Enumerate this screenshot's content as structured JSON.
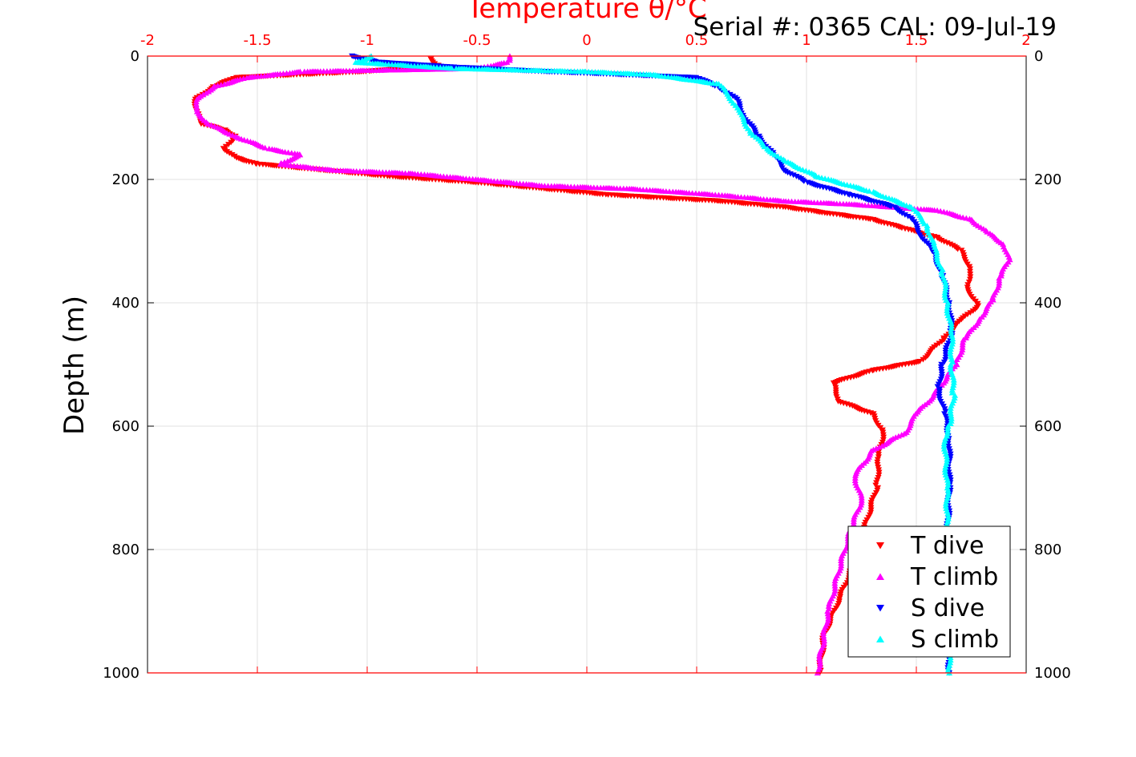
{
  "chart_data": {
    "type": "scatter",
    "title": "",
    "annotation": "Serial #: 0365  CAL: 09-Jul-19",
    "xlabel": "Temperature θ/°C",
    "ylabel": "Depth (m)",
    "xlim": [
      -2,
      2
    ],
    "ylim": [
      0,
      1000
    ],
    "y_reversed": true,
    "grid": true,
    "legend_position": "bottom-right",
    "x_ticks": [
      "-2",
      "-1.5",
      "-1",
      "-0.5",
      "0",
      "0.5",
      "1",
      "1.5",
      "2"
    ],
    "y_ticks": [
      "0",
      "200",
      "400",
      "600",
      "800",
      "1000"
    ],
    "colors": {
      "axis_top": "#ff0000",
      "grid": "#e0e0e0"
    },
    "series": [
      {
        "name": "T dive",
        "marker": "triangle-down",
        "color": "#ff0000",
        "points": [
          [
            -0.71,
            5
          ],
          [
            -0.68,
            15
          ],
          [
            -1.0,
            25
          ],
          [
            -1.6,
            35
          ],
          [
            -1.7,
            50
          ],
          [
            -1.78,
            70
          ],
          [
            -1.78,
            90
          ],
          [
            -1.75,
            110
          ],
          [
            -1.65,
            120
          ],
          [
            -1.6,
            130
          ],
          [
            -1.65,
            150
          ],
          [
            -1.6,
            165
          ],
          [
            -1.5,
            175
          ],
          [
            -1.2,
            185
          ],
          [
            -0.9,
            195
          ],
          [
            -0.5,
            205
          ],
          [
            -0.2,
            215
          ],
          [
            0.1,
            225
          ],
          [
            0.6,
            235
          ],
          [
            0.9,
            245
          ],
          [
            1.1,
            255
          ],
          [
            1.3,
            265
          ],
          [
            1.45,
            280
          ],
          [
            1.6,
            295
          ],
          [
            1.7,
            315
          ],
          [
            1.75,
            345
          ],
          [
            1.73,
            375
          ],
          [
            1.78,
            405
          ],
          [
            1.7,
            430
          ],
          [
            1.62,
            460
          ],
          [
            1.52,
            495
          ],
          [
            1.3,
            510
          ],
          [
            1.12,
            530
          ],
          [
            1.15,
            560
          ],
          [
            1.3,
            580
          ],
          [
            1.35,
            610
          ],
          [
            1.33,
            650
          ],
          [
            1.32,
            700
          ],
          [
            1.27,
            760
          ],
          [
            1.22,
            820
          ],
          [
            1.15,
            880
          ],
          [
            1.08,
            940
          ],
          [
            1.06,
            1000
          ]
        ]
      },
      {
        "name": "T climb",
        "marker": "triangle-up",
        "color": "#ff00ff",
        "points": [
          [
            -0.35,
            0
          ],
          [
            -0.36,
            10
          ],
          [
            -0.5,
            20
          ],
          [
            -1.3,
            25
          ],
          [
            -1.55,
            35
          ],
          [
            -1.7,
            50
          ],
          [
            -1.77,
            70
          ],
          [
            -1.78,
            90
          ],
          [
            -1.72,
            110
          ],
          [
            -1.6,
            130
          ],
          [
            -1.45,
            150
          ],
          [
            -1.3,
            160
          ],
          [
            -1.4,
            175
          ],
          [
            -1.15,
            185
          ],
          [
            -0.8,
            190
          ],
          [
            -0.5,
            200
          ],
          [
            -0.2,
            210
          ],
          [
            0.2,
            215
          ],
          [
            0.6,
            225
          ],
          [
            0.9,
            235
          ],
          [
            1.2,
            240
          ],
          [
            1.6,
            250
          ],
          [
            1.75,
            265
          ],
          [
            1.82,
            285
          ],
          [
            1.9,
            305
          ],
          [
            1.92,
            330
          ],
          [
            1.88,
            360
          ],
          [
            1.85,
            395
          ],
          [
            1.78,
            430
          ],
          [
            1.72,
            460
          ],
          [
            1.68,
            500
          ],
          [
            1.58,
            550
          ],
          [
            1.5,
            580
          ],
          [
            1.45,
            610
          ],
          [
            1.3,
            640
          ],
          [
            1.22,
            680
          ],
          [
            1.25,
            720
          ],
          [
            1.2,
            770
          ],
          [
            1.15,
            830
          ],
          [
            1.1,
            900
          ],
          [
            1.07,
            960
          ],
          [
            1.05,
            1000
          ]
        ]
      },
      {
        "name": "S dive",
        "marker": "triangle-down",
        "color": "#0000ff",
        "points": [
          [
            -1.07,
            0
          ],
          [
            -0.95,
            10
          ],
          [
            -0.6,
            18
          ],
          [
            -0.2,
            25
          ],
          [
            0.5,
            35
          ],
          [
            0.6,
            50
          ],
          [
            0.68,
            70
          ],
          [
            0.72,
            100
          ],
          [
            0.78,
            130
          ],
          [
            0.85,
            160
          ],
          [
            0.9,
            185
          ],
          [
            1.0,
            205
          ],
          [
            1.2,
            225
          ],
          [
            1.4,
            245
          ],
          [
            1.48,
            265
          ],
          [
            1.52,
            290
          ],
          [
            1.58,
            320
          ],
          [
            1.62,
            360
          ],
          [
            1.65,
            400
          ],
          [
            1.66,
            450
          ],
          [
            1.62,
            500
          ],
          [
            1.6,
            540
          ],
          [
            1.63,
            580
          ],
          [
            1.65,
            620
          ],
          [
            1.65,
            700
          ],
          [
            1.64,
            800
          ],
          [
            1.64,
            900
          ],
          [
            1.65,
            1000
          ]
        ]
      },
      {
        "name": "S climb",
        "marker": "triangle-up",
        "color": "#00ffff",
        "points": [
          [
            -0.98,
            0
          ],
          [
            -1.05,
            10
          ],
          [
            -0.6,
            20
          ],
          [
            0.0,
            25
          ],
          [
            0.3,
            30
          ],
          [
            0.6,
            45
          ],
          [
            0.65,
            65
          ],
          [
            0.7,
            95
          ],
          [
            0.75,
            125
          ],
          [
            0.82,
            150
          ],
          [
            0.9,
            170
          ],
          [
            1.05,
            195
          ],
          [
            1.3,
            220
          ],
          [
            1.48,
            245
          ],
          [
            1.55,
            275
          ],
          [
            1.58,
            310
          ],
          [
            1.62,
            350
          ],
          [
            1.64,
            400
          ],
          [
            1.66,
            450
          ],
          [
            1.66,
            500
          ],
          [
            1.67,
            550
          ],
          [
            1.65,
            600
          ],
          [
            1.63,
            620
          ],
          [
            1.64,
            700
          ],
          [
            1.64,
            800
          ],
          [
            1.65,
            900
          ],
          [
            1.65,
            1000
          ]
        ]
      }
    ]
  }
}
